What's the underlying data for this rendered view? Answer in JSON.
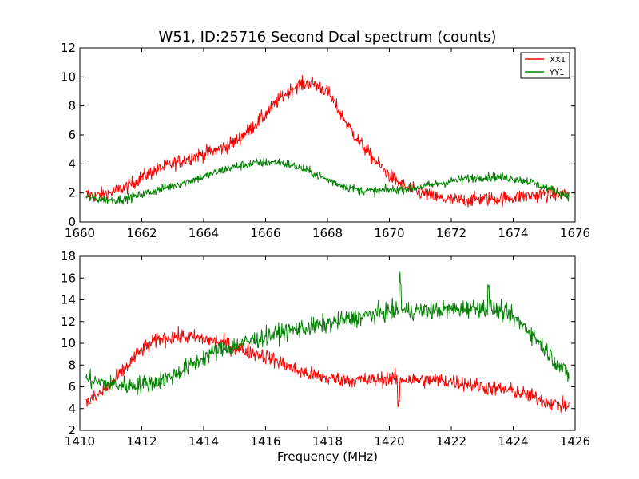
{
  "chart_data": [
    {
      "type": "line",
      "title": "W51, ID:25716 Second Dcal spectrum (counts)",
      "xlabel": "",
      "ylabel": "",
      "xlim": [
        1660,
        1676
      ],
      "ylim": [
        0,
        12
      ],
      "xticks": [
        "1660",
        "1662",
        "1664",
        "1666",
        "1668",
        "1670",
        "1672",
        "1674",
        "1676"
      ],
      "yticks": [
        "0",
        "2",
        "4",
        "6",
        "8",
        "10",
        "12"
      ],
      "legend": "top-right",
      "series": [
        {
          "name": "XX1",
          "color": "#ff0000",
          "noise": 0.35,
          "x": [
            1660.2,
            1660.5,
            1661.0,
            1661.5,
            1662.0,
            1662.5,
            1663.0,
            1663.5,
            1664.0,
            1664.5,
            1665.0,
            1665.5,
            1666.0,
            1666.5,
            1667.0,
            1667.5,
            1668.0,
            1668.5,
            1669.0,
            1669.5,
            1670.0,
            1670.5,
            1671.0,
            1671.5,
            1672.0,
            1672.5,
            1673.0,
            1673.5,
            1674.0,
            1674.5,
            1675.0,
            1675.5,
            1675.8
          ],
          "values": [
            1.9,
            1.8,
            2.0,
            2.4,
            3.1,
            3.6,
            4.0,
            4.4,
            4.7,
            5.0,
            5.5,
            6.4,
            7.4,
            8.6,
            9.4,
            9.6,
            9.0,
            7.2,
            5.6,
            4.3,
            3.2,
            2.4,
            2.0,
            1.7,
            1.5,
            1.5,
            1.6,
            1.6,
            1.7,
            1.8,
            1.9,
            1.9,
            2.0
          ]
        },
        {
          "name": "YY1",
          "color": "#008000",
          "noise": 0.22,
          "x": [
            1660.2,
            1660.5,
            1661.0,
            1661.5,
            1662.0,
            1662.5,
            1663.0,
            1663.5,
            1664.0,
            1664.5,
            1665.0,
            1665.5,
            1666.0,
            1666.5,
            1667.0,
            1667.5,
            1668.0,
            1668.5,
            1669.0,
            1669.5,
            1670.0,
            1670.5,
            1671.0,
            1671.5,
            1672.0,
            1672.5,
            1673.0,
            1673.5,
            1674.0,
            1674.5,
            1675.0,
            1675.5,
            1675.8
          ],
          "values": [
            1.7,
            1.6,
            1.5,
            1.6,
            1.9,
            2.2,
            2.5,
            2.8,
            3.1,
            3.5,
            3.8,
            4.0,
            4.1,
            4.1,
            3.8,
            3.4,
            2.9,
            2.5,
            2.2,
            2.1,
            2.2,
            2.3,
            2.4,
            2.6,
            2.8,
            3.0,
            3.1,
            3.1,
            3.0,
            2.8,
            2.4,
            2.0,
            1.8
          ]
        }
      ]
    },
    {
      "type": "line",
      "title": "",
      "xlabel": "Frequency (MHz)",
      "ylabel": "",
      "xlim": [
        1410,
        1426
      ],
      "ylim": [
        2,
        18
      ],
      "xticks": [
        "1410",
        "1412",
        "1414",
        "1416",
        "1418",
        "1420",
        "1422",
        "1424",
        "1426"
      ],
      "yticks": [
        "2",
        "4",
        "6",
        "8",
        "10",
        "12",
        "14",
        "16",
        "18"
      ],
      "legend": "none",
      "series": [
        {
          "name": "",
          "color": "#ff0000",
          "noise": 0.5,
          "x": [
            1410.2,
            1410.5,
            1411.0,
            1411.5,
            1412.0,
            1412.5,
            1413.0,
            1413.5,
            1414.0,
            1414.5,
            1415.0,
            1415.5,
            1416.0,
            1416.5,
            1417.0,
            1417.5,
            1418.0,
            1418.5,
            1419.0,
            1419.5,
            1420.0,
            1420.5,
            1421.0,
            1421.5,
            1422.0,
            1422.5,
            1423.0,
            1423.5,
            1424.0,
            1424.5,
            1425.0,
            1425.5,
            1425.8
          ],
          "values": [
            4.5,
            5.0,
            6.2,
            7.8,
            9.4,
            10.3,
            10.6,
            10.6,
            10.4,
            10.1,
            9.6,
            9.2,
            8.8,
            8.2,
            7.5,
            7.1,
            6.8,
            6.7,
            6.6,
            6.6,
            6.8,
            6.7,
            6.6,
            6.6,
            6.5,
            6.3,
            6.0,
            5.8,
            5.6,
            5.2,
            4.7,
            4.3,
            4.2
          ]
        },
        {
          "name": "",
          "color": "#008000",
          "noise": 0.6,
          "x": [
            1410.2,
            1410.5,
            1411.0,
            1411.5,
            1412.0,
            1412.5,
            1413.0,
            1413.5,
            1414.0,
            1414.5,
            1415.0,
            1415.5,
            1416.0,
            1416.5,
            1417.0,
            1417.5,
            1418.0,
            1418.5,
            1419.0,
            1419.5,
            1420.0,
            1420.5,
            1421.0,
            1421.5,
            1422.0,
            1422.5,
            1423.0,
            1423.5,
            1424.0,
            1424.5,
            1425.0,
            1425.5,
            1425.8
          ],
          "values": [
            6.8,
            6.5,
            6.2,
            6.1,
            6.2,
            6.5,
            7.0,
            7.8,
            8.7,
            9.4,
            9.8,
            10.2,
            10.6,
            11.0,
            11.3,
            11.5,
            11.8,
            12.1,
            12.4,
            12.7,
            12.9,
            13.0,
            13.0,
            13.0,
            13.1,
            13.2,
            13.3,
            13.1,
            12.4,
            11.2,
            9.6,
            7.9,
            7.0
          ]
        }
      ],
      "annotations": "narrow spikes near 1420.3 MHz and 1423.2 MHz"
    }
  ]
}
